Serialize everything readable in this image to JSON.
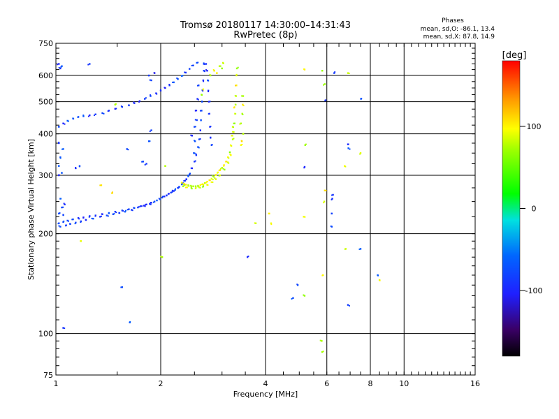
{
  "chart_data": {
    "type": "scatter",
    "title": "Tromsø 20180117 14:30:00–14:31:43",
    "subtitle": "RwPretec (8p)",
    "xlabel": "Frequency [MHz]",
    "ylabel": "Stationary phase Virtual Height [km]",
    "x_scale": "log",
    "y_scale": "log",
    "xlim": [
      1,
      16
    ],
    "ylim": [
      75,
      750
    ],
    "x_tick_labels": [
      {
        "value": 1,
        "label": "1"
      },
      {
        "value": 2,
        "label": "2"
      },
      {
        "value": 4,
        "label": "4"
      },
      {
        "value": 6,
        "label": "6"
      },
      {
        "value": 8,
        "label": "8"
      },
      {
        "value": 10,
        "label": "10"
      },
      {
        "value": 16,
        "label": "16"
      }
    ],
    "y_tick_labels": [
      {
        "value": 75,
        "label": "75"
      },
      {
        "value": 100,
        "label": "100"
      },
      {
        "value": 200,
        "label": "200"
      },
      {
        "value": 300,
        "label": "300"
      },
      {
        "value": 400,
        "label": "400"
      },
      {
        "value": 500,
        "label": "500"
      },
      {
        "value": 600,
        "label": "600"
      },
      {
        "value": 750,
        "label": "750"
      }
    ],
    "grid": true,
    "phases_header": "Phases",
    "phase_stats": [
      "mean, sd,O: -86.1, 13.4",
      "mean, sd,X:  87.8, 14.9"
    ],
    "colorbar": {
      "label": "[deg]",
      "range": [
        -180,
        180
      ],
      "ticks": [
        {
          "value": 100,
          "label": "100"
        },
        {
          "value": 0,
          "label": "0"
        },
        {
          "value": -100,
          "label": "-100"
        }
      ]
    },
    "series": [
      {
        "mode": "O",
        "phase_mean": -86.1,
        "points": [
          [
            1.02,
            215
          ],
          [
            1.05,
            217
          ],
          [
            1.08,
            219
          ],
          [
            1.12,
            221
          ],
          [
            1.16,
            223
          ],
          [
            1.2,
            224
          ],
          [
            1.25,
            226
          ],
          [
            1.3,
            227
          ],
          [
            1.36,
            229
          ],
          [
            1.42,
            231
          ],
          [
            1.48,
            233
          ],
          [
            1.55,
            235
          ],
          [
            1.62,
            237
          ],
          [
            1.68,
            239
          ],
          [
            1.75,
            242
          ],
          [
            1.82,
            245
          ],
          [
            1.88,
            248
          ],
          [
            1.95,
            252
          ],
          [
            2.02,
            257
          ],
          [
            2.08,
            261
          ],
          [
            2.14,
            266
          ],
          [
            2.2,
            271
          ],
          [
            2.26,
            277
          ],
          [
            2.32,
            284
          ],
          [
            2.37,
            292
          ],
          [
            2.42,
            302
          ],
          [
            2.46,
            315
          ],
          [
            2.5,
            330
          ],
          [
            2.53,
            345
          ],
          [
            2.56,
            365
          ],
          [
            2.58,
            385
          ],
          [
            2.6,
            410
          ],
          [
            2.61,
            440
          ],
          [
            2.62,
            470
          ],
          [
            2.63,
            500
          ],
          [
            2.64,
            540
          ],
          [
            2.65,
            580
          ],
          [
            2.66,
            620
          ],
          [
            2.66,
            650
          ],
          [
            2.7,
            650
          ],
          [
            2.72,
            620
          ],
          [
            2.73,
            580
          ],
          [
            2.74,
            540
          ],
          [
            2.75,
            500
          ],
          [
            2.76,
            460
          ],
          [
            2.77,
            420
          ],
          [
            2.78,
            390
          ],
          [
            2.8,
            370
          ],
          [
            1.03,
            210
          ],
          [
            1.07,
            212
          ],
          [
            1.1,
            214
          ],
          [
            1.14,
            216
          ],
          [
            1.18,
            218
          ],
          [
            1.22,
            220
          ],
          [
            1.28,
            222
          ],
          [
            1.34,
            225
          ],
          [
            1.4,
            227
          ],
          [
            1.46,
            229
          ],
          [
            1.52,
            231
          ],
          [
            1.58,
            233
          ],
          [
            1.65,
            236
          ],
          [
            1.72,
            240
          ],
          [
            1.79,
            243
          ],
          [
            1.86,
            246
          ],
          [
            1.92,
            250
          ],
          [
            1.99,
            254
          ],
          [
            2.05,
            259
          ],
          [
            2.11,
            264
          ],
          [
            2.18,
            269
          ],
          [
            2.24,
            275
          ],
          [
            2.3,
            282
          ],
          [
            2.35,
            289
          ],
          [
            2.4,
            298
          ],
          [
            1.02,
            230
          ],
          [
            1.04,
            240
          ],
          [
            1.03,
            255
          ],
          [
            1.05,
            228
          ],
          [
            1.06,
            245
          ],
          [
            1.02,
            420
          ],
          [
            1.05,
            430
          ],
          [
            1.08,
            438
          ],
          [
            1.12,
            445
          ],
          [
            1.16,
            450
          ],
          [
            1.2,
            452
          ],
          [
            1.25,
            455
          ],
          [
            1.3,
            458
          ],
          [
            1.36,
            462
          ],
          [
            1.42,
            470
          ],
          [
            1.48,
            476
          ],
          [
            1.55,
            482
          ],
          [
            1.62,
            488
          ],
          [
            1.68,
            495
          ],
          [
            1.74,
            502
          ],
          [
            1.8,
            510
          ],
          [
            1.87,
            520
          ],
          [
            1.94,
            530
          ],
          [
            2.0,
            540
          ],
          [
            2.06,
            550
          ],
          [
            2.12,
            560
          ],
          [
            2.18,
            572
          ],
          [
            2.24,
            585
          ],
          [
            2.3,
            598
          ],
          [
            2.36,
            612
          ],
          [
            2.42,
            628
          ],
          [
            2.48,
            643
          ],
          [
            2.54,
            655
          ],
          [
            1.02,
            300
          ],
          [
            1.04,
            305
          ],
          [
            1.02,
            320
          ],
          [
            1.03,
            340
          ],
          [
            1.05,
            360
          ],
          [
            1.02,
            375
          ],
          [
            1.03,
            630
          ],
          [
            1.02,
            650
          ],
          [
            1.04,
            640
          ],
          [
            1.14,
            315
          ],
          [
            1.17,
            320
          ],
          [
            1.6,
            360
          ],
          [
            1.78,
            330
          ],
          [
            1.82,
            325
          ],
          [
            1.85,
            380
          ],
          [
            1.88,
            410
          ],
          [
            1.92,
            610
          ],
          [
            1.85,
            600
          ],
          [
            1.25,
            650
          ],
          [
            1.88,
            580
          ],
          [
            2.46,
            395
          ],
          [
            2.5,
            420
          ],
          [
            2.52,
            470
          ],
          [
            2.55,
            510
          ],
          [
            2.57,
            560
          ],
          [
            2.54,
            440
          ],
          [
            2.51,
            380
          ],
          [
            2.49,
            350
          ],
          [
            3.55,
            170
          ],
          [
            1.55,
            138
          ],
          [
            1.63,
            108
          ],
          [
            1.05,
            104
          ],
          [
            4.8,
            128
          ],
          [
            4.95,
            140
          ],
          [
            5.18,
            318
          ],
          [
            6.2,
            210
          ],
          [
            6.2,
            230
          ],
          [
            6.22,
            255
          ],
          [
            6.25,
            262
          ],
          [
            6.3,
            610
          ],
          [
            6.9,
            122
          ],
          [
            6.9,
            372
          ],
          [
            6.92,
            362
          ],
          [
            7.5,
            180
          ],
          [
            7.52,
            510
          ],
          [
            8.4,
            150
          ],
          [
            5.95,
            505
          ]
        ]
      },
      {
        "mode": "X",
        "phase_mean": 87.8,
        "points": [
          [
            2.3,
            285
          ],
          [
            2.33,
            283
          ],
          [
            2.36,
            281
          ],
          [
            2.4,
            280
          ],
          [
            2.44,
            279
          ],
          [
            2.48,
            278
          ],
          [
            2.52,
            278
          ],
          [
            2.56,
            279
          ],
          [
            2.6,
            280
          ],
          [
            2.64,
            282
          ],
          [
            2.68,
            284
          ],
          [
            2.72,
            287
          ],
          [
            2.76,
            290
          ],
          [
            2.8,
            293
          ],
          [
            2.84,
            297
          ],
          [
            2.88,
            301
          ],
          [
            2.92,
            306
          ],
          [
            2.96,
            311
          ],
          [
            3.0,
            316
          ],
          [
            3.04,
            322
          ],
          [
            3.08,
            330
          ],
          [
            3.12,
            340
          ],
          [
            3.16,
            352
          ],
          [
            3.19,
            368
          ],
          [
            3.22,
            385
          ],
          [
            3.24,
            405
          ],
          [
            3.26,
            430
          ],
          [
            3.27,
            460
          ],
          [
            3.28,
            490
          ],
          [
            3.29,
            520
          ],
          [
            3.3,
            560
          ],
          [
            3.3,
            600
          ],
          [
            3.31,
            630
          ],
          [
            2.32,
            278
          ],
          [
            2.38,
            276
          ],
          [
            2.45,
            275
          ],
          [
            2.52,
            274
          ],
          [
            2.58,
            276
          ],
          [
            2.65,
            278
          ],
          [
            2.72,
            281
          ],
          [
            2.8,
            286
          ],
          [
            2.88,
            292
          ],
          [
            2.96,
            300
          ],
          [
            3.05,
            312
          ],
          [
            3.12,
            328
          ],
          [
            3.18,
            345
          ],
          [
            2.78,
            600
          ],
          [
            2.85,
            620
          ],
          [
            2.95,
            640
          ],
          [
            3.02,
            655
          ],
          [
            2.9,
            610
          ],
          [
            3.0,
            630
          ],
          [
            3.4,
            370
          ],
          [
            3.42,
            380
          ],
          [
            3.45,
            400
          ],
          [
            3.43,
            460
          ],
          [
            3.45,
            520
          ],
          [
            3.44,
            490
          ],
          [
            3.4,
            430
          ],
          [
            3.25,
            480
          ],
          [
            3.22,
            420
          ],
          [
            3.2,
            395
          ],
          [
            5.18,
            625
          ],
          [
            5.2,
            370
          ],
          [
            5.15,
            225
          ],
          [
            5.18,
            130
          ],
          [
            5.82,
            620
          ],
          [
            5.85,
            150
          ],
          [
            5.8,
            95
          ],
          [
            5.82,
            88
          ],
          [
            5.92,
            565
          ],
          [
            5.9,
            250
          ],
          [
            5.92,
            270
          ],
          [
            6.75,
            320
          ],
          [
            6.8,
            180
          ],
          [
            7.5,
            350
          ],
          [
            8.5,
            145
          ],
          [
            4.1,
            230
          ],
          [
            4.15,
            215
          ],
          [
            3.75,
            215
          ],
          [
            1.48,
            490
          ],
          [
            1.45,
            265
          ],
          [
            1.35,
            280
          ],
          [
            1.18,
            190
          ],
          [
            2.02,
            170
          ],
          [
            2.06,
            320
          ],
          [
            2.65,
            545
          ],
          [
            2.62,
            525
          ],
          [
            6.9,
            610
          ]
        ]
      }
    ]
  }
}
